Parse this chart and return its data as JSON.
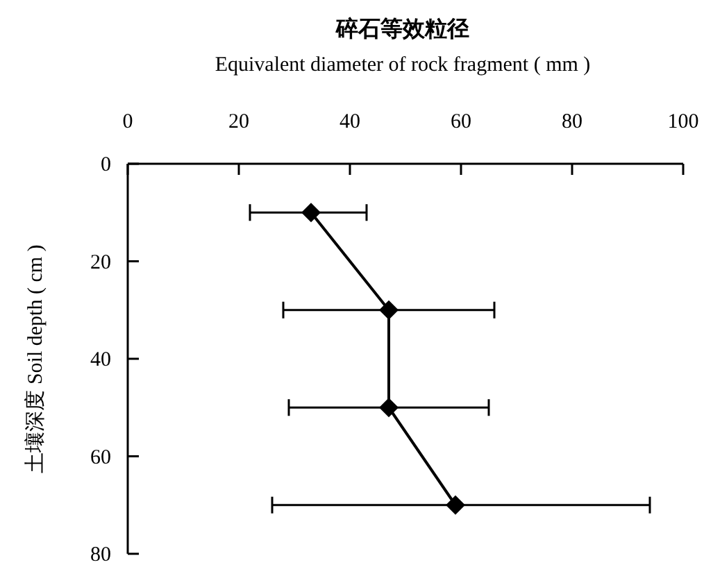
{
  "chart_data": {
    "type": "line",
    "xlabel": "碎石等效粒径\nEquivalent diameter of rock fragment ( mm )",
    "ylabel": "土壤深度  Soil depth ( cm )",
    "x": [
      33,
      47,
      47,
      59
    ],
    "values": [
      10,
      30,
      50,
      70
    ],
    "xerrors": [
      [
        22,
        43
      ],
      [
        28,
        66
      ],
      [
        29,
        65
      ],
      [
        26,
        94
      ]
    ],
    "color": "#000000",
    "marker": "diamond",
    "line_style": "solid",
    "xlim": [
      0,
      100
    ],
    "xticks": [
      0,
      20,
      40,
      60,
      80,
      100
    ],
    "ylim": [
      80,
      0
    ],
    "yticks": [
      0,
      20,
      40,
      60,
      80
    ],
    "grid": false
  }
}
